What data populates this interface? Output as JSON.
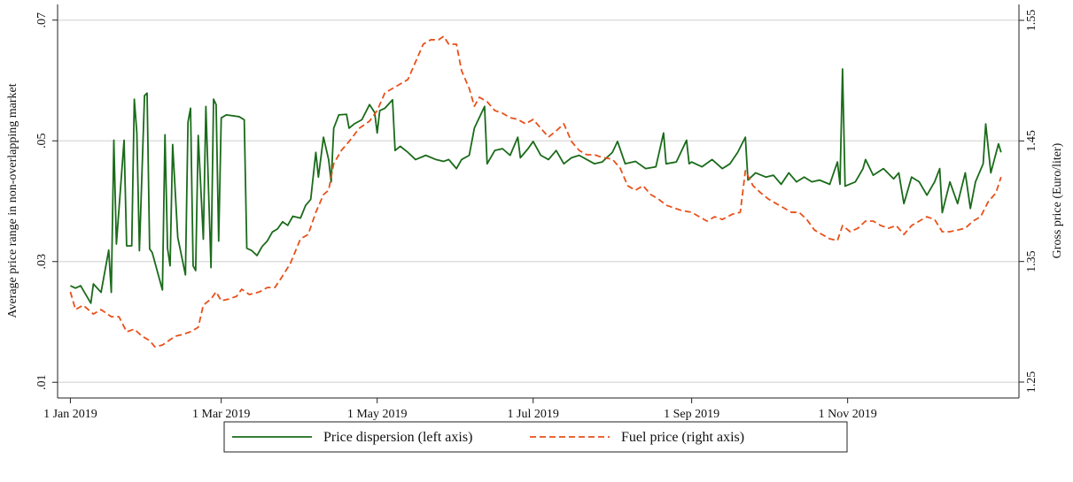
{
  "chart_data": {
    "type": "line",
    "y_label": "Average price range in non-overlapping market",
    "y2_label": "Gross price (Euro/liter)",
    "legend": "bottom",
    "grid": true,
    "xlim": [
      "2018-12-27",
      "2020-01-07"
    ],
    "xticks": [
      {
        "value": "2019-01-01",
        "label": "1 Jan 2019"
      },
      {
        "value": "2019-03-01",
        "label": "1 Mar 2019"
      },
      {
        "value": "2019-05-01",
        "label": "1 May 2019"
      },
      {
        "value": "2019-07-01",
        "label": "1 Jul 2019"
      },
      {
        "value": "2019-09-01",
        "label": "1 Sep 2019"
      },
      {
        "value": "2019-11-01",
        "label": "1 Nov 2019"
      }
    ],
    "ylim": [
      0.0074,
      0.0726
    ],
    "yticks": [
      {
        "value": 0.01,
        "label": ".01"
      },
      {
        "value": 0.03,
        "label": ".03"
      },
      {
        "value": 0.05,
        "label": ".05"
      },
      {
        "value": 0.07,
        "label": ".07"
      }
    ],
    "y2lim": [
      1.2368,
      1.5632
    ],
    "y2ticks": [
      1.25,
      1.35,
      1.45,
      1.55
    ],
    "series": [
      {
        "name": "Price dispersion (left axis)",
        "color": "#1a6b1a",
        "dash": "solid",
        "x": [
          "2019-01-01",
          "2019-01-03",
          "2019-01-05",
          "2019-01-09",
          "2019-01-10",
          "2019-01-13",
          "2019-01-16",
          "2019-01-17",
          "2019-01-18",
          "2019-01-19",
          "2019-01-22",
          "2019-01-23",
          "2019-01-25",
          "2019-01-26",
          "2019-01-27",
          "2019-01-28",
          "2019-01-30",
          "2019-01-31",
          "2019-02-01",
          "2019-02-02",
          "2019-02-06",
          "2019-02-07",
          "2019-02-08",
          "2019-02-09",
          "2019-02-10",
          "2019-02-12",
          "2019-02-15",
          "2019-02-16",
          "2019-02-17",
          "2019-02-18",
          "2019-02-19",
          "2019-02-20",
          "2019-02-22",
          "2019-02-23",
          "2019-02-25",
          "2019-02-26",
          "2019-02-27",
          "2019-02-28",
          "2019-03-01",
          "2019-03-03",
          "2019-03-08",
          "2019-03-10",
          "2019-03-11",
          "2019-03-13",
          "2019-03-15",
          "2019-03-17",
          "2019-03-19",
          "2019-03-21",
          "2019-03-23",
          "2019-03-25",
          "2019-03-27",
          "2019-03-29",
          "2019-04-01",
          "2019-04-03",
          "2019-04-05",
          "2019-04-07",
          "2019-04-08",
          "2019-04-10",
          "2019-04-12",
          "2019-04-13",
          "2019-04-14",
          "2019-04-16",
          "2019-04-19",
          "2019-04-20",
          "2019-04-22",
          "2019-04-25",
          "2019-04-28",
          "2019-04-30",
          "2019-05-01",
          "2019-05-02",
          "2019-05-04",
          "2019-05-07",
          "2019-05-08",
          "2019-05-10",
          "2019-05-13",
          "2019-05-16",
          "2019-05-20",
          "2019-05-24",
          "2019-05-27",
          "2019-05-29",
          "2019-06-01",
          "2019-06-03",
          "2019-06-06",
          "2019-06-08",
          "2019-06-12",
          "2019-06-13",
          "2019-06-16",
          "2019-06-19",
          "2019-06-22",
          "2019-06-25",
          "2019-06-26",
          "2019-06-29",
          "2019-07-01",
          "2019-07-04",
          "2019-07-07",
          "2019-07-10",
          "2019-07-13",
          "2019-07-16",
          "2019-07-19",
          "2019-07-22",
          "2019-07-25",
          "2019-07-28",
          "2019-08-01",
          "2019-08-03",
          "2019-08-06",
          "2019-08-10",
          "2019-08-14",
          "2019-08-18",
          "2019-08-21",
          "2019-08-22",
          "2019-08-26",
          "2019-08-30",
          "2019-08-31",
          "2019-09-01",
          "2019-09-05",
          "2019-09-09",
          "2019-09-13",
          "2019-09-16",
          "2019-09-19",
          "2019-09-22",
          "2019-09-23",
          "2019-09-26",
          "2019-09-30",
          "2019-10-03",
          "2019-10-06",
          "2019-10-09",
          "2019-10-12",
          "2019-10-15",
          "2019-10-18",
          "2019-10-21",
          "2019-10-25",
          "2019-10-28",
          "2019-10-29",
          "2019-10-30",
          "2019-10-31",
          "2019-11-04",
          "2019-11-07",
          "2019-11-08",
          "2019-11-11",
          "2019-11-15",
          "2019-11-19",
          "2019-11-21",
          "2019-11-23",
          "2019-11-26",
          "2019-11-29",
          "2019-12-02",
          "2019-12-05",
          "2019-12-07",
          "2019-12-08",
          "2019-12-11",
          "2019-12-14",
          "2019-12-17",
          "2019-12-19",
          "2019-12-21",
          "2019-12-24",
          "2019-12-25",
          "2019-12-27",
          "2019-12-30",
          "2019-12-31"
        ],
        "values": [
          0.026,
          0.0256,
          0.026,
          0.0231,
          0.0263,
          0.0249,
          0.0319,
          0.0249,
          0.0501,
          0.0329,
          0.0501,
          0.0326,
          0.0326,
          0.0569,
          0.0513,
          0.0318,
          0.0575,
          0.0579,
          0.0321,
          0.0315,
          0.0253,
          0.051,
          0.0322,
          0.0293,
          0.0494,
          0.034,
          0.0278,
          0.0531,
          0.0554,
          0.0293,
          0.0285,
          0.0509,
          0.0337,
          0.0557,
          0.029,
          0.0569,
          0.056,
          0.0334,
          0.0538,
          0.0543,
          0.054,
          0.0535,
          0.0322,
          0.0318,
          0.031,
          0.0325,
          0.0334,
          0.0349,
          0.0354,
          0.0366,
          0.036,
          0.0375,
          0.0372,
          0.0393,
          0.0403,
          0.0481,
          0.044,
          0.0506,
          0.0469,
          0.0432,
          0.0521,
          0.0543,
          0.0544,
          0.0521,
          0.0528,
          0.0535,
          0.056,
          0.0547,
          0.0513,
          0.055,
          0.0554,
          0.0568,
          0.0484,
          0.0491,
          0.0481,
          0.0469,
          0.0476,
          0.0469,
          0.0466,
          0.0469,
          0.0454,
          0.0469,
          0.0476,
          0.0521,
          0.0557,
          0.0462,
          0.0484,
          0.0487,
          0.0476,
          0.0506,
          0.0472,
          0.0487,
          0.0499,
          0.0476,
          0.0469,
          0.0484,
          0.0462,
          0.0472,
          0.0476,
          0.0469,
          0.0462,
          0.0465,
          0.0481,
          0.0499,
          0.0462,
          0.0466,
          0.0454,
          0.0457,
          0.0513,
          0.0462,
          0.0465,
          0.0501,
          0.0462,
          0.0465,
          0.0457,
          0.0469,
          0.0454,
          0.0462,
          0.0481,
          0.0506,
          0.0435,
          0.0447,
          0.044,
          0.0443,
          0.0428,
          0.0447,
          0.0432,
          0.044,
          0.0432,
          0.0435,
          0.0428,
          0.0465,
          0.0428,
          0.0619,
          0.0425,
          0.0432,
          0.0454,
          0.0469,
          0.0443,
          0.0454,
          0.0437,
          0.0447,
          0.0396,
          0.044,
          0.0432,
          0.041,
          0.0432,
          0.0454,
          0.0381,
          0.0432,
          0.0396,
          0.0447,
          0.0388,
          0.0432,
          0.0462,
          0.0528,
          0.0447,
          0.0495,
          0.0481
        ]
      },
      {
        "name": "Fuel price (right axis)",
        "color": "#e8501a",
        "dash": "dashed",
        "axis": "y2",
        "x": [
          "2019-01-01",
          "2019-01-03",
          "2019-01-06",
          "2019-01-10",
          "2019-01-13",
          "2019-01-17",
          "2019-01-20",
          "2019-01-23",
          "2019-01-26",
          "2019-01-29",
          "2019-02-01",
          "2019-02-03",
          "2019-02-06",
          "2019-02-09",
          "2019-02-11",
          "2019-02-14",
          "2019-02-17",
          "2019-02-20",
          "2019-02-22",
          "2019-02-25",
          "2019-02-27",
          "2019-03-01",
          "2019-03-04",
          "2019-03-07",
          "2019-03-09",
          "2019-03-12",
          "2019-03-16",
          "2019-03-19",
          "2019-03-22",
          "2019-03-25",
          "2019-03-28",
          "2019-04-01",
          "2019-04-04",
          "2019-04-07",
          "2019-04-10",
          "2019-04-12",
          "2019-04-14",
          "2019-04-17",
          "2019-04-20",
          "2019-04-24",
          "2019-04-28",
          "2019-05-01",
          "2019-05-04",
          "2019-05-07",
          "2019-05-10",
          "2019-05-13",
          "2019-05-16",
          "2019-05-19",
          "2019-05-22",
          "2019-05-25",
          "2019-05-27",
          "2019-05-29",
          "2019-06-01",
          "2019-06-03",
          "2019-06-06",
          "2019-06-08",
          "2019-06-10",
          "2019-06-13",
          "2019-06-16",
          "2019-06-19",
          "2019-06-22",
          "2019-06-25",
          "2019-06-28",
          "2019-07-01",
          "2019-07-04",
          "2019-07-07",
          "2019-07-10",
          "2019-07-13",
          "2019-07-16",
          "2019-07-19",
          "2019-07-22",
          "2019-07-25",
          "2019-07-28",
          "2019-08-01",
          "2019-08-04",
          "2019-08-07",
          "2019-08-10",
          "2019-08-13",
          "2019-08-16",
          "2019-08-19",
          "2019-08-22",
          "2019-08-25",
          "2019-08-28",
          "2019-09-01",
          "2019-09-04",
          "2019-09-07",
          "2019-09-10",
          "2019-09-13",
          "2019-09-17",
          "2019-09-20",
          "2019-09-22",
          "2019-09-25",
          "2019-09-28",
          "2019-10-01",
          "2019-10-04",
          "2019-10-07",
          "2019-10-10",
          "2019-10-13",
          "2019-10-16",
          "2019-10-19",
          "2019-10-22",
          "2019-10-25",
          "2019-10-28",
          "2019-10-30",
          "2019-11-02",
          "2019-11-05",
          "2019-11-08",
          "2019-11-11",
          "2019-11-14",
          "2019-11-17",
          "2019-11-20",
          "2019-11-23",
          "2019-11-26",
          "2019-11-29",
          "2019-12-02",
          "2019-12-05",
          "2019-12-08",
          "2019-12-11",
          "2019-12-14",
          "2019-12-17",
          "2019-12-20",
          "2019-12-23",
          "2019-12-26",
          "2019-12-29",
          "2019-12-31"
        ],
        "values": [
          1.3248,
          1.3101,
          1.3138,
          1.3064,
          1.3101,
          1.3042,
          1.3042,
          1.2917,
          1.2939,
          1.2881,
          1.2844,
          1.2793,
          1.2807,
          1.2851,
          1.2881,
          1.2895,
          1.2917,
          1.2954,
          1.3138,
          1.3189,
          1.3248,
          1.3174,
          1.3189,
          1.3211,
          1.327,
          1.3226,
          1.3248,
          1.3284,
          1.3284,
          1.338,
          1.3482,
          1.3688,
          1.3724,
          1.3908,
          1.4055,
          1.4091,
          1.4311,
          1.4421,
          1.4495,
          1.4605,
          1.4664,
          1.4752,
          1.4898,
          1.4935,
          1.4972,
          1.5009,
          1.5155,
          1.5302,
          1.5339,
          1.5339,
          1.5368,
          1.5302,
          1.5302,
          1.5082,
          1.4935,
          1.4788,
          1.4862,
          1.4825,
          1.4752,
          1.473,
          1.4693,
          1.4678,
          1.4642,
          1.4678,
          1.4605,
          1.4532,
          1.4583,
          1.4642,
          1.4495,
          1.4421,
          1.4385,
          1.4385,
          1.4363,
          1.4348,
          1.4275,
          1.4128,
          1.4091,
          1.4128,
          1.4055,
          1.4018,
          1.3967,
          1.3945,
          1.3923,
          1.3908,
          1.3871,
          1.3835,
          1.3871,
          1.3849,
          1.3893,
          1.3908,
          1.4253,
          1.4128,
          1.4069,
          1.4018,
          1.3981,
          1.3945,
          1.3908,
          1.3908,
          1.3849,
          1.3761,
          1.3724,
          1.3688,
          1.3673,
          1.3798,
          1.3747,
          1.3776,
          1.3835,
          1.3835,
          1.3798,
          1.3776,
          1.3798,
          1.3724,
          1.3798,
          1.3835,
          1.3871,
          1.3849,
          1.3747,
          1.3747,
          1.3761,
          1.3776,
          1.3835,
          1.3871,
          1.3996,
          1.4069,
          1.4201
        ]
      }
    ]
  }
}
